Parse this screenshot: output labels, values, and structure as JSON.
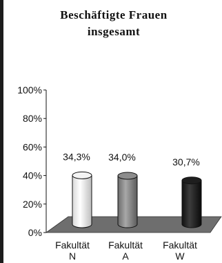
{
  "chart_data": {
    "type": "bar",
    "title_lines": [
      "Beschäftigte Frauen",
      "insgesamt"
    ],
    "categories": [
      [
        "Fakultät",
        "N"
      ],
      [
        "Fakultät",
        "A"
      ],
      [
        "Fakultät",
        "W"
      ]
    ],
    "values": [
      34.3,
      34.0,
      30.7
    ],
    "data_labels": [
      "34,3%",
      "34,0%",
      "30,7%"
    ],
    "ylim": [
      0,
      100
    ],
    "yticks": [
      0,
      20,
      40,
      60,
      80,
      100
    ],
    "ytick_labels": [
      "0%",
      "20%",
      "40%",
      "60%",
      "80%",
      "100%"
    ],
    "bar_colors": [
      "#f4f4f4",
      "#8c8c8c",
      "#1e1e1e"
    ],
    "floor_color": "#6e6e6e",
    "legend": "none",
    "grid": false,
    "style": "3d-cylinder"
  }
}
